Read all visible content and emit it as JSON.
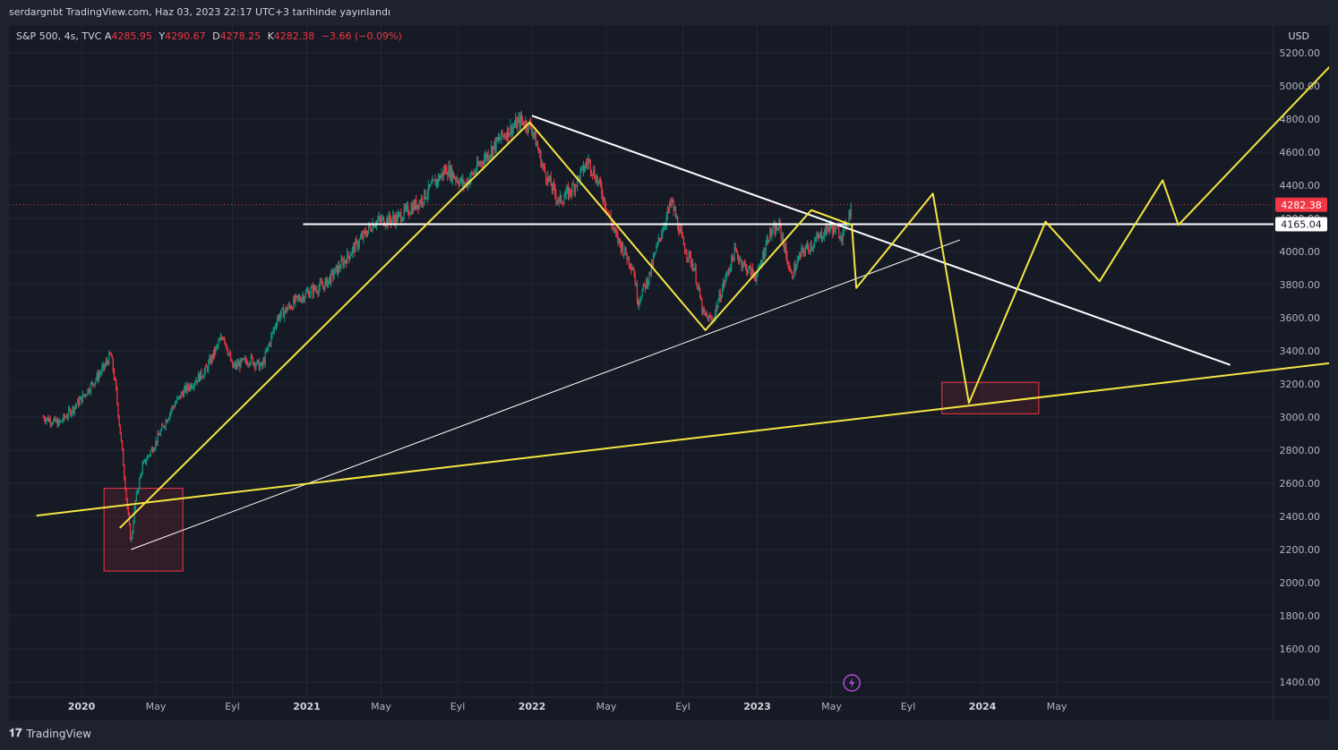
{
  "header": {
    "publish_line": "serdargnbt TradingView.com, Haz 03, 2023 22:17 UTC+3 tarihinde yayınlandı"
  },
  "legend": {
    "symbol": "S&P 500, 4s, TVC",
    "open_label": "A",
    "open_value": "4285.95",
    "high_label": "Y",
    "high_value": "4290.67",
    "low_label": "D",
    "low_value": "4278.25",
    "close_label": "K",
    "close_value": "4282.38",
    "change": "−3.66 (−0.09%)"
  },
  "footer": {
    "brand": "TradingView"
  },
  "colors": {
    "background": "#161a25",
    "grid": "#232632",
    "text": "#b2b5be",
    "up": "#089981",
    "down": "#f23645",
    "yellow": "#f5e642",
    "white": "#ffffff",
    "price_badge": "#f23645",
    "level_badge": "#ffffff"
  },
  "chart_data": {
    "type": "candlestick",
    "symbol": "S&P 500",
    "interval": "4s",
    "currency": "USD",
    "x_ticks": [
      "2020",
      "May",
      "Eyl",
      "2021",
      "May",
      "Eyl",
      "2022",
      "May",
      "Eyl",
      "2023",
      "May",
      "Eyl",
      "2024",
      "May"
    ],
    "y_ticks": [
      1400,
      1600,
      1800,
      2000,
      2200,
      2400,
      2600,
      2800,
      3000,
      3200,
      3400,
      3600,
      3800,
      4000,
      4200,
      4400,
      4600,
      4800,
      5000,
      5200
    ],
    "ylim": [
      1330,
      5300
    ],
    "xlim": [
      2019.8,
      2025.6
    ],
    "price_path": [
      [
        2019.83,
        3000
      ],
      [
        2019.9,
        2960
      ],
      [
        2020.0,
        3110
      ],
      [
        2020.1,
        3300
      ],
      [
        2020.13,
        3380
      ],
      [
        2020.15,
        3200
      ],
      [
        2020.18,
        2800
      ],
      [
        2020.2,
        2500
      ],
      [
        2020.22,
        2237
      ],
      [
        2020.24,
        2500
      ],
      [
        2020.27,
        2700
      ],
      [
        2020.33,
        2850
      ],
      [
        2020.4,
        3050
      ],
      [
        2020.45,
        3150
      ],
      [
        2020.55,
        3280
      ],
      [
        2020.63,
        3500
      ],
      [
        2020.67,
        3300
      ],
      [
        2020.75,
        3350
      ],
      [
        2020.8,
        3300
      ],
      [
        2020.87,
        3600
      ],
      [
        2020.95,
        3700
      ],
      [
        2021.0,
        3750
      ],
      [
        2021.08,
        3800
      ],
      [
        2021.17,
        3950
      ],
      [
        2021.3,
        4180
      ],
      [
        2021.4,
        4200
      ],
      [
        2021.5,
        4300
      ],
      [
        2021.62,
        4500
      ],
      [
        2021.7,
        4400
      ],
      [
        2021.78,
        4550
      ],
      [
        2021.87,
        4700
      ],
      [
        2021.95,
        4790
      ],
      [
        2022.0,
        4750
      ],
      [
        2022.05,
        4500
      ],
      [
        2022.12,
        4300
      ],
      [
        2022.18,
        4380
      ],
      [
        2022.25,
        4550
      ],
      [
        2022.3,
        4400
      ],
      [
        2022.37,
        4100
      ],
      [
        2022.45,
        3900
      ],
      [
        2022.47,
        3700
      ],
      [
        2022.52,
        3850
      ],
      [
        2022.57,
        4100
      ],
      [
        2022.62,
        4300
      ],
      [
        2022.67,
        4050
      ],
      [
        2022.72,
        3900
      ],
      [
        2022.76,
        3620
      ],
      [
        2022.8,
        3580
      ],
      [
        2022.85,
        3800
      ],
      [
        2022.9,
        4000
      ],
      [
        2022.95,
        3900
      ],
      [
        2023.0,
        3850
      ],
      [
        2023.05,
        4100
      ],
      [
        2023.1,
        4150
      ],
      [
        2023.15,
        3850
      ],
      [
        2023.2,
        4000
      ],
      [
        2023.25,
        4050
      ],
      [
        2023.32,
        4150
      ],
      [
        2023.38,
        4100
      ],
      [
        2023.42,
        4280
      ]
    ],
    "last_price": 4282.38,
    "level_label": 4165.04,
    "overlays": {
      "horizontal_level": 4165.04,
      "white_trend_upper": [
        [
          2022.0,
          4820
        ],
        [
          2025.1,
          3315
        ]
      ],
      "white_trend_lower": [
        [
          2020.22,
          2200
        ],
        [
          2023.9,
          4070
        ]
      ],
      "yellow_support": [
        [
          2019.8,
          2405
        ],
        [
          2025.6,
          3335
        ]
      ],
      "yellow_rally_2020": [
        [
          2020.17,
          2330
        ],
        [
          2021.99,
          4780
        ]
      ],
      "yellow_swing_2022": [
        [
          2021.99,
          4780
        ],
        [
          2022.77,
          3525
        ],
        [
          2023.24,
          4250
        ],
        [
          2023.42,
          4160
        ]
      ],
      "yellow_projection": [
        [
          2023.42,
          4160
        ],
        [
          2023.44,
          3780
        ],
        [
          2023.78,
          4350
        ],
        [
          2023.94,
          3085
        ],
        [
          2024.28,
          4180
        ],
        [
          2024.52,
          3820
        ],
        [
          2024.8,
          4430
        ],
        [
          2024.87,
          4160
        ],
        [
          2025.6,
          5200
        ]
      ],
      "zones": [
        {
          "x0": 2020.1,
          "x1": 2020.45,
          "y0": 2070,
          "y1": 2570
        },
        {
          "x0": 2023.82,
          "x1": 2024.25,
          "y0": 3020,
          "y1": 3210
        }
      ]
    }
  }
}
